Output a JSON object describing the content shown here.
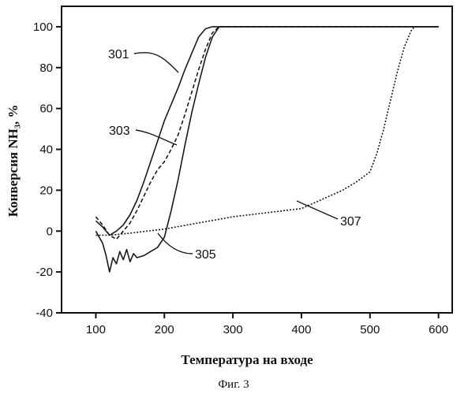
{
  "chart_data": {
    "type": "line",
    "xlabel": "Температура на входе",
    "ylabel": "Конверсия NH₃, %",
    "caption": "Фиг. 3",
    "xlim": [
      50,
      620
    ],
    "ylim": [
      -40,
      110
    ],
    "xticks": [
      100,
      200,
      300,
      400,
      500,
      600
    ],
    "yticks": [
      -40,
      -20,
      0,
      20,
      40,
      60,
      80,
      100
    ],
    "grid": false,
    "series": [
      {
        "name": "301",
        "x": [
          100,
          110,
          120,
          130,
          140,
          150,
          160,
          170,
          180,
          190,
          200,
          210,
          220,
          230,
          240,
          250,
          260,
          270,
          280,
          300,
          350,
          400,
          450,
          500,
          550,
          600
        ],
        "y": [
          5,
          2,
          -2,
          0,
          3,
          8,
          15,
          24,
          34,
          44,
          54,
          62,
          70,
          79,
          87,
          95,
          99,
          100,
          100,
          100,
          100,
          100,
          100,
          100,
          100,
          100
        ]
      },
      {
        "name": "303",
        "x": [
          100,
          110,
          120,
          130,
          140,
          150,
          160,
          170,
          180,
          190,
          200,
          210,
          220,
          230,
          240,
          250,
          260,
          270,
          280,
          300,
          350,
          400,
          450,
          500,
          550,
          600
        ],
        "y": [
          7,
          3,
          -2,
          -4,
          0,
          4,
          10,
          17,
          24,
          30,
          34,
          40,
          47,
          57,
          68,
          79,
          89,
          97,
          100,
          100,
          100,
          100,
          100,
          100,
          100,
          100
        ]
      },
      {
        "name": "305",
        "x": [
          100,
          110,
          115,
          120,
          125,
          130,
          135,
          140,
          145,
          150,
          155,
          160,
          170,
          180,
          190,
          200,
          210,
          220,
          230,
          240,
          250,
          260,
          270,
          280,
          300,
          350,
          400,
          450,
          500,
          550,
          600
        ],
        "y": [
          0,
          -6,
          -12,
          -20,
          -13,
          -16,
          -10,
          -14,
          -9,
          -15,
          -11,
          -13,
          -12,
          -10,
          -8,
          -3,
          10,
          25,
          42,
          58,
          72,
          85,
          95,
          100,
          100,
          100,
          100,
          100,
          100,
          100,
          100
        ]
      },
      {
        "name": "307",
        "x": [
          100,
          120,
          150,
          200,
          250,
          300,
          350,
          400,
          420,
          440,
          460,
          480,
          500,
          510,
          520,
          530,
          540,
          550,
          560,
          565,
          600
        ],
        "y": [
          -2,
          -2,
          -1,
          1,
          4,
          7,
          9,
          11,
          14,
          17,
          20,
          24,
          29,
          38,
          50,
          64,
          78,
          90,
          98,
          100,
          100
        ]
      }
    ],
    "labels": {
      "s301": "301",
      "s303": "303",
      "s305": "305",
      "s307": "307"
    }
  }
}
